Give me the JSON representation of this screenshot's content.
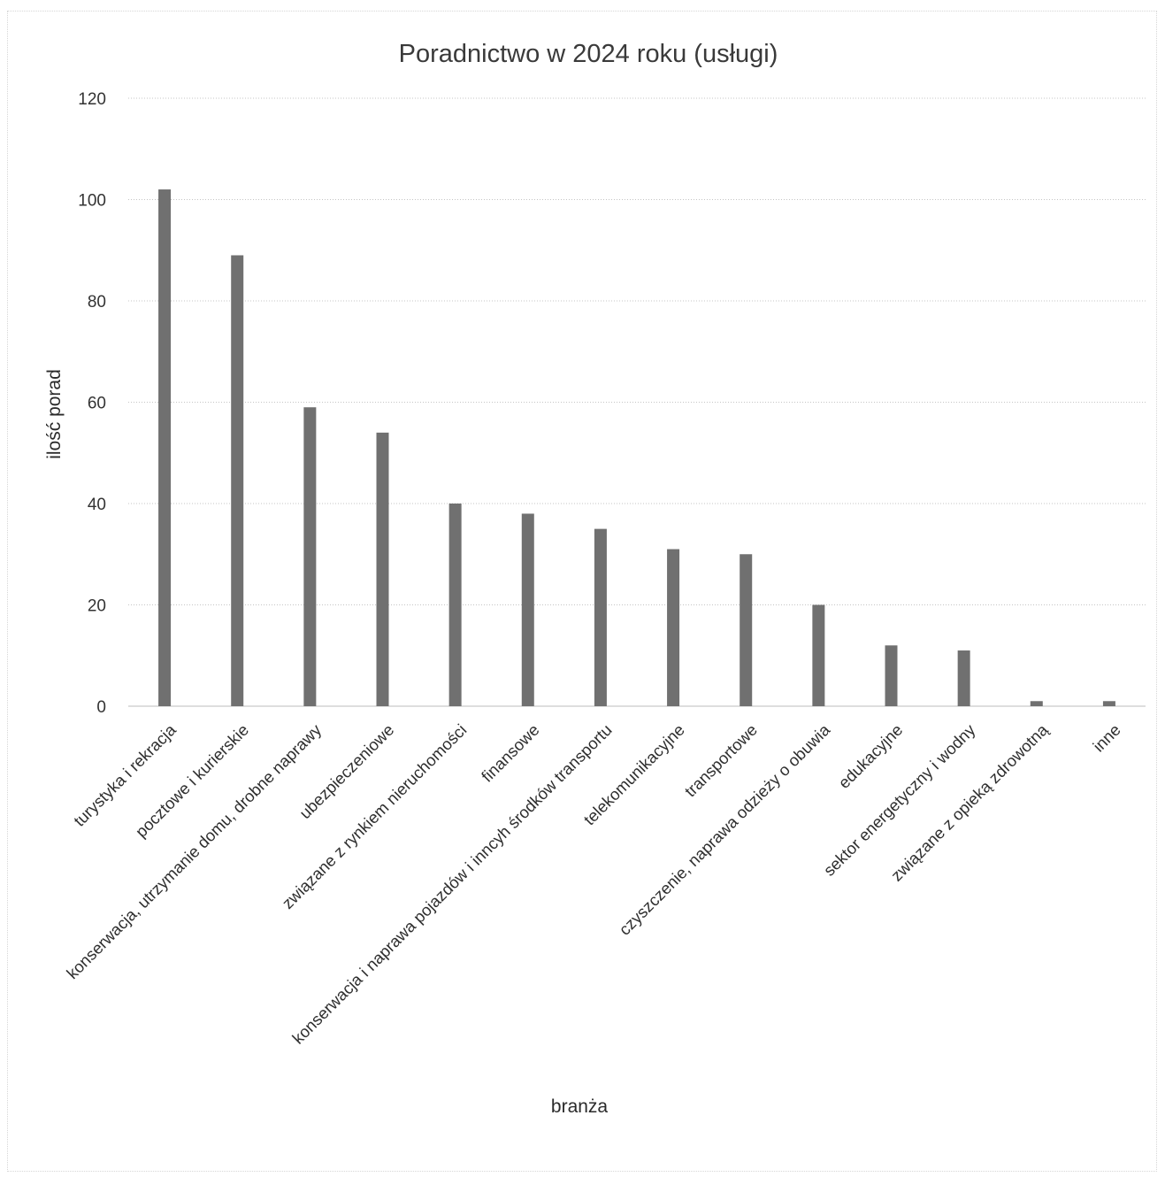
{
  "chart_data": {
    "type": "bar",
    "title": "Poradnictwo w 2024 roku (usługi)",
    "xlabel": "branża",
    "ylabel": "ilość porad",
    "ylim": [
      0,
      120
    ],
    "yticks": [
      0,
      20,
      40,
      60,
      80,
      100,
      120
    ],
    "grid": true,
    "legend": "none",
    "colors": {
      "bar": "#707070",
      "grid": "#c4c4c4",
      "text": "#333333"
    },
    "categories": [
      "turystyka i rekracja",
      "pocztowe i kurierskie",
      "konserwacja, utrzymanie domu, drobne naprawy",
      "ubezpieczeniowe",
      "związane z rynkiem nieruchomości",
      "finansowe",
      "konserwacja i naprawa pojazdów i inncyh środków transportu",
      "telekomunikacyjne",
      "transportowe",
      "czyszczenie, naprawa odzieży o obuwia",
      "edukacyjne",
      "sektor energetyczny i wodny",
      "związane z opieką zdrowotną",
      "inne"
    ],
    "values": [
      102,
      89,
      59,
      54,
      40,
      38,
      35,
      31,
      30,
      20,
      12,
      11,
      1,
      1
    ]
  }
}
